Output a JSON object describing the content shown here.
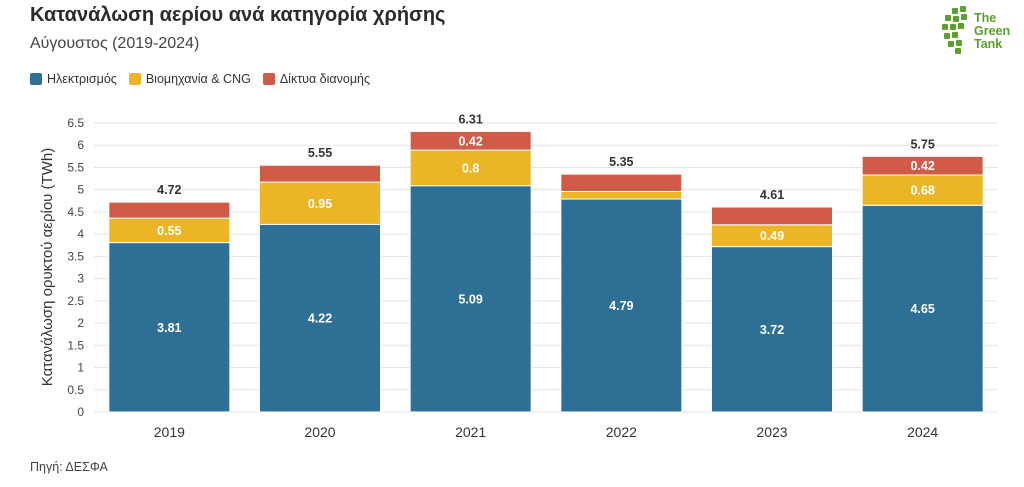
{
  "header": {
    "title": "Κατανάλωση αερίου ανά κατηγορία χρήσης",
    "subtitle": "Αύγουστος (2019-2024)"
  },
  "logo": {
    "line1": "The",
    "line2": "Green",
    "line3": "Tank"
  },
  "source": "Πηγή: ΔΕΣΦΑ",
  "colors": {
    "electricity": "#2e6f96",
    "industry": "#ebb526",
    "networks": "#d15b49",
    "grid": "#e3e3e3",
    "logo": "#5aa02c"
  },
  "chart_data": {
    "type": "bar",
    "stacked": true,
    "categories": [
      "2019",
      "2020",
      "2021",
      "2022",
      "2023",
      "2024"
    ],
    "series": [
      {
        "name": "Ηλεκτρισμός",
        "color": "#2e6f96",
        "values": [
          3.81,
          4.22,
          5.09,
          4.79,
          3.72,
          4.65
        ],
        "labels": [
          "3.81",
          "4.22",
          "5.09",
          "4.79",
          "3.72",
          "4.65"
        ]
      },
      {
        "name": "Βιομηχανία & CNG",
        "color": "#ebb526",
        "values": [
          0.55,
          0.95,
          0.8,
          0.17,
          0.49,
          0.68
        ],
        "labels": [
          "0.55",
          "0.95",
          "0.8",
          "",
          "0.49",
          "0.68"
        ]
      },
      {
        "name": "Δίκτυα διανομής",
        "color": "#d15b49",
        "values": [
          0.36,
          0.38,
          0.42,
          0.39,
          0.4,
          0.42
        ],
        "labels": [
          "",
          "",
          "0.42",
          "",
          "",
          "0.42"
        ]
      }
    ],
    "totals": [
      "4.72",
      "5.55",
      "6.31",
      "5.35",
      "4.61",
      "5.75"
    ],
    "ylabel": "Κατανάλωση ορυκτού αερίου (TWh)",
    "ylim": [
      0,
      6.5
    ],
    "yticks": [
      "0",
      "0.5",
      "1",
      "1.5",
      "2",
      "2.5",
      "3",
      "3.5",
      "4",
      "4.5",
      "5",
      "5.5",
      "6",
      "6.5"
    ],
    "grid": true,
    "legend_position": "top-left"
  }
}
